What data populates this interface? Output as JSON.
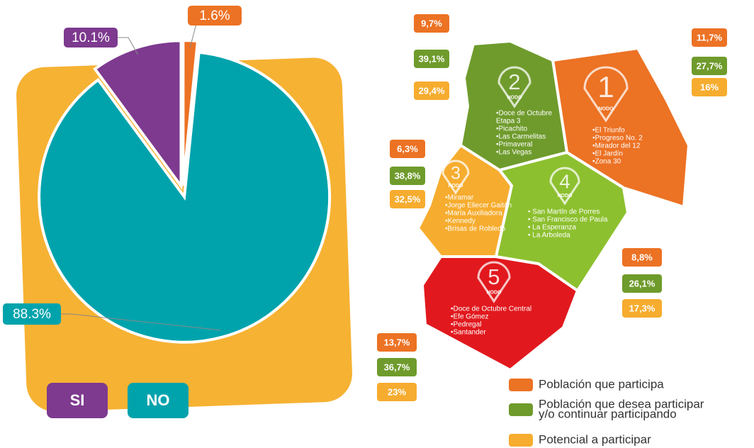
{
  "chart_data": {
    "type": "pie",
    "categories": [
      null,
      "NO",
      "SI"
    ],
    "values": [
      1.6,
      88.3,
      10.1
    ],
    "value_labels": [
      "1.6%",
      "88.3%",
      "10.1%"
    ],
    "colors": [
      "#ec7224",
      "#00a3ac",
      "#7d3a8f"
    ]
  },
  "map": {
    "nodes": [
      {
        "number": "1",
        "label": "NODO",
        "color": "#ec7224",
        "places": [
          "•El Triunfo",
          "•Progreso No. 2",
          "•Mirador del 12",
          "•El Jardín",
          "•Zona 30"
        ],
        "stats": [
          "11,7%",
          "27,7%",
          "16%"
        ]
      },
      {
        "number": "2",
        "label": "NODO",
        "color": "#6f9b2c",
        "places": [
          "•Doce de Octubre",
          "Etapa 3",
          "•Picachito",
          "•Las Carmelitas",
          "•Primaveral",
          "•Las Vegas"
        ],
        "stats": [
          "9,7%",
          "39,1%",
          "29,4%"
        ]
      },
      {
        "number": "3",
        "label": "NODO",
        "color": "#f6ac2e",
        "places": [
          "•Miramar",
          "•Jorge Eliecer Gaitán",
          "•María Auxiliadora",
          "•Kennedy",
          "•Brisas de Robledo"
        ],
        "stats": [
          "6,3%",
          "38,8%",
          "32,5%"
        ]
      },
      {
        "number": "4",
        "label": "NODO",
        "color": "#e1191e",
        "places": [
          "• San Martín de Porres",
          "• San Francisco de Paula",
          "• La Esperanza",
          "• La Arboleda"
        ],
        "stats": [
          "13,7%",
          "36,7%",
          "23%"
        ]
      },
      {
        "number": "5",
        "label": "NODO",
        "color": "#8dc02f",
        "places": [
          "•Doce de Octubre Central",
          "•Efe Gómez",
          "•Pedregal",
          "•Santander"
        ],
        "stats": [
          "8,8%",
          "26,1%",
          "17,3%"
        ]
      }
    ]
  },
  "legend": {
    "items": [
      {
        "label": "Población que participa",
        "color": "#ec7224"
      },
      {
        "label": [
          "Población que desea participar",
          "y/o continuar participando"
        ],
        "color": "#6f9b2c"
      },
      {
        "label": "Potencial a participar",
        "color": "#f6ac2e"
      }
    ]
  }
}
